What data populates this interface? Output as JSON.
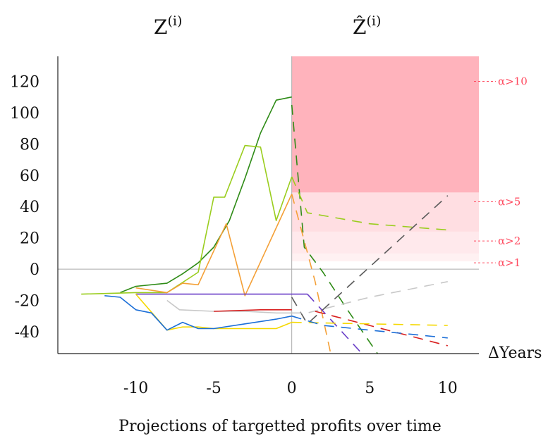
{
  "headers": {
    "left": "Z",
    "left_sup": "(i)",
    "right": "Ẑ",
    "right_sup": "(i)"
  },
  "chart_data": {
    "type": "line",
    "title": "",
    "caption": "Projections of targetted profits over time",
    "xlabel": "ΔYears",
    "ylabel": "",
    "xlim": [
      -15,
      12
    ],
    "ylim": [
      -54,
      136
    ],
    "xticks": [
      -10,
      -5,
      0,
      5,
      10
    ],
    "xtick_labels": [
      "-10",
      "-5",
      "0",
      "5",
      "10"
    ],
    "yticks": [
      -40,
      -20,
      0,
      20,
      40,
      60,
      80,
      100,
      120
    ],
    "ytick_labels": [
      "-40",
      "-20",
      "0",
      "20",
      "40",
      "60",
      "80",
      "100",
      "120"
    ],
    "grid": false,
    "reference_lines": {
      "y": 0,
      "x": 0
    },
    "band_color": "#ff4a5f",
    "bands": [
      {
        "label": "α>10",
        "y0": 49,
        "y1": 136,
        "opacity": 0.42
      },
      {
        "label": "α>5",
        "y0": 24,
        "y1": 49,
        "opacity": 0.18
      },
      {
        "label": "α>2",
        "y0": 10,
        "y1": 24,
        "opacity": 0.12
      },
      {
        "label": "α>1",
        "y0": 5,
        "y1": 10,
        "opacity": 0.08
      }
    ],
    "series": [
      {
        "color": "#2e8b16",
        "observed": [
          [
            -11,
            -15
          ],
          [
            -10,
            -11
          ],
          [
            -8,
            -9
          ],
          [
            -7,
            -3
          ],
          [
            -6,
            4
          ],
          [
            -5,
            14
          ],
          [
            -4,
            31
          ],
          [
            -3,
            58
          ],
          [
            -2,
            87
          ],
          [
            -1,
            108
          ],
          [
            0,
            110
          ]
        ],
        "projected": [
          [
            0,
            105
          ],
          [
            0.8,
            14
          ],
          [
            2,
            -2
          ],
          [
            3.5,
            -25
          ],
          [
            5.5,
            -54
          ]
        ]
      },
      {
        "color": "#9acd1e",
        "observed": [
          [
            -13.5,
            -16
          ],
          [
            -10,
            -15
          ],
          [
            -8,
            -15
          ],
          [
            -6,
            -2
          ],
          [
            -5,
            46
          ],
          [
            -4.3,
            46
          ],
          [
            -3,
            79
          ],
          [
            -2,
            78
          ],
          [
            -1,
            31
          ],
          [
            0,
            59
          ]
        ],
        "projected": [
          [
            0,
            59
          ],
          [
            1,
            36
          ],
          [
            5,
            29
          ],
          [
            10,
            25
          ]
        ]
      },
      {
        "color": "#f4a037",
        "observed": [
          [
            -10,
            -12
          ],
          [
            -8,
            -15
          ],
          [
            -7,
            -9
          ],
          [
            -6,
            -10
          ],
          [
            -4.2,
            29
          ],
          [
            -3,
            -17
          ],
          [
            0,
            48
          ]
        ],
        "projected": [
          [
            0,
            48
          ],
          [
            1.5,
            -8
          ],
          [
            2.5,
            -54
          ]
        ]
      },
      {
        "color": "#5a5a5a",
        "observed": [],
        "projected": [
          [
            0,
            -18
          ],
          [
            1,
            -35
          ],
          [
            10,
            47
          ]
        ]
      },
      {
        "color": "#c8c8c8",
        "observed": [
          [
            -8,
            -20
          ],
          [
            -7.2,
            -26
          ],
          [
            -5,
            -27
          ],
          [
            -3,
            -27
          ],
          [
            -1,
            -28
          ],
          [
            0,
            -28
          ]
        ],
        "projected": [
          [
            0,
            -28
          ],
          [
            1,
            -28
          ],
          [
            5,
            -18
          ],
          [
            10,
            -8
          ]
        ]
      },
      {
        "color": "#6a3fc8",
        "observed": [
          [
            -10,
            -16
          ],
          [
            0,
            -16
          ],
          [
            1,
            -16
          ]
        ],
        "projected": [
          [
            1,
            -16
          ],
          [
            4.5,
            -54
          ]
        ]
      },
      {
        "color": "#d81f1f",
        "observed": [
          [
            -5,
            -27
          ],
          [
            -2,
            -26
          ],
          [
            0,
            -26
          ]
        ],
        "projected": [
          [
            1.5,
            -27
          ],
          [
            10,
            -49
          ]
        ]
      },
      {
        "color": "#f5d800",
        "observed": [
          [
            -10,
            -16
          ],
          [
            -8,
            -39
          ],
          [
            -7,
            -37
          ],
          [
            -6,
            -37
          ],
          [
            -5,
            -38
          ],
          [
            -3,
            -38
          ],
          [
            -1,
            -38
          ],
          [
            0,
            -34
          ]
        ],
        "projected": [
          [
            0,
            -34
          ],
          [
            10,
            -36
          ]
        ]
      },
      {
        "color": "#1c6fd8",
        "observed": [
          [
            -12,
            -17
          ],
          [
            -11,
            -18
          ],
          [
            -10,
            -26
          ],
          [
            -9,
            -28
          ],
          [
            -8,
            -39
          ],
          [
            -7,
            -34
          ],
          [
            -6,
            -38
          ],
          [
            -5,
            -38
          ],
          [
            -3,
            -35
          ],
          [
            -1,
            -32
          ],
          [
            0,
            -30
          ]
        ],
        "projected": [
          [
            0,
            -30
          ],
          [
            2,
            -36
          ],
          [
            10,
            -44
          ]
        ]
      }
    ]
  }
}
